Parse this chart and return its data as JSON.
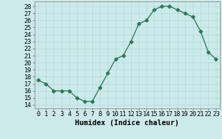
{
  "x": [
    0,
    1,
    2,
    3,
    4,
    5,
    6,
    7,
    8,
    9,
    10,
    11,
    12,
    13,
    14,
    15,
    16,
    17,
    18,
    19,
    20,
    21,
    22,
    23
  ],
  "y": [
    17.5,
    17.0,
    16.0,
    16.0,
    16.0,
    15.0,
    14.5,
    14.5,
    16.5,
    18.5,
    20.5,
    21.0,
    23.0,
    25.5,
    26.0,
    27.5,
    28.0,
    28.0,
    27.5,
    27.0,
    26.5,
    24.5,
    21.5,
    20.5
  ],
  "line_color": "#2a7a5a",
  "marker": "D",
  "markersize": 2.5,
  "linewidth": 1.0,
  "background_color": "#cdeaea",
  "grid_color": "#b0d8d8",
  "xlabel": "Humidex (Indice chaleur)",
  "ylabel_ticks": [
    14,
    15,
    16,
    17,
    18,
    19,
    20,
    21,
    22,
    23,
    24,
    25,
    26,
    27,
    28
  ],
  "xlim": [
    -0.5,
    23.5
  ],
  "ylim": [
    13.5,
    28.7
  ],
  "xlabel_fontsize": 7.5,
  "tick_fontsize": 6.5
}
